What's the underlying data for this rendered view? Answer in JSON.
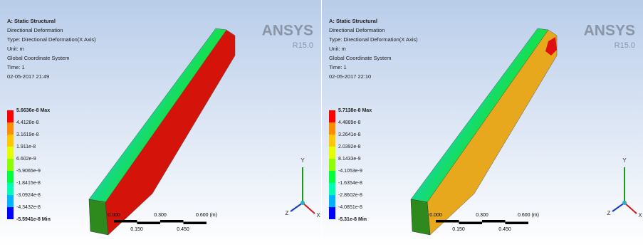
{
  "panels": [
    {
      "header": [
        "A: Static Structural",
        "Directional Deformation",
        "Type: Directional Deformation(X Axis)",
        "Unit: m",
        "Global Coordinate System",
        "Time: 1",
        "02-05-2017 21:49"
      ],
      "legend": [
        "5.6636e-8 Max",
        "4.4128e-8",
        "3.1619e-8",
        "1.911e-8",
        "6.602e-9",
        "-5.9065e-9",
        "-1.8415e-8",
        "-3.0924e-8",
        "-4.3432e-8",
        "-5.5941e-8 Min"
      ],
      "scale_top": [
        "0.000",
        "0.300",
        "0.600 (m)"
      ],
      "scale_bottom": [
        "0.150",
        "0.450"
      ],
      "logo": "ANSYS",
      "version": "R15.0",
      "axes": [
        "Y",
        "Z",
        "X"
      ]
    },
    {
      "header": [
        "A: Static Structural",
        "Directional Deformation",
        "Type: Directional Deformation(X Axis)",
        "Unit: m",
        "Global Coordinate System",
        "Time: 1",
        "02-05-2017 22:10"
      ],
      "legend": [
        "5.7138e-8 Max",
        "4.4889e-8",
        "3.2641e-8",
        "2.0392e-8",
        "8.1433e-9",
        "-4.1053e-9",
        "-1.6354e-8",
        "-2.8602e-8",
        "-4.0851e-8",
        "-5.31e-8 Min"
      ],
      "scale_top": [
        "0.000",
        "0.300",
        "0.600 (m)"
      ],
      "scale_bottom": [
        "0.150",
        "0.450"
      ],
      "logo": "ANSYS",
      "version": "R15.0",
      "axes": [
        "Y",
        "Z",
        "X"
      ]
    }
  ]
}
